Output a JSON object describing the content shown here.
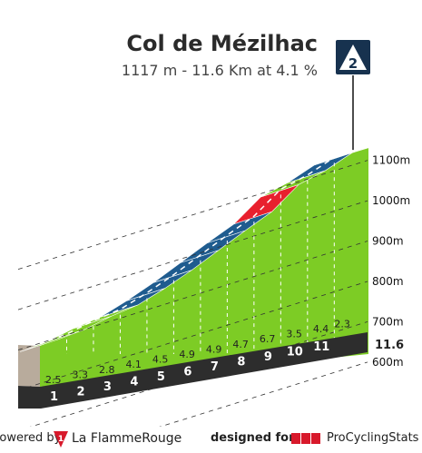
{
  "chart_data": {
    "type": "area",
    "title": "Col de Mézilhac",
    "subtitle": "1117 m - 11.6 Km at 4.1 %",
    "badge": "2",
    "x_labels": [
      "1",
      "2",
      "3",
      "4",
      "5",
      "6",
      "7",
      "8",
      "9",
      "10",
      "11"
    ],
    "end_label": "11.6",
    "km_gradients": [
      2.5,
      3.3,
      2.8,
      4.1,
      4.5,
      4.9,
      4.9,
      4.7,
      6.7,
      3.5,
      4.4,
      2.3
    ],
    "altitude_ticks": [
      "600m",
      "700m",
      "800m",
      "900m",
      "1000m",
      "1100m"
    ],
    "altitude_tick_values": [
      600,
      700,
      800,
      900,
      1000,
      1100
    ],
    "summit_altitude": 1117,
    "distance_km": 11.6,
    "average_gradient": 4.1,
    "gradient_colors": {
      "0-4": "#7dcc25",
      "4-6": "#1f5c8f",
      "6-8": "#e8202e",
      "base": "#2d2d2d",
      "wall": "#b8ab9c"
    }
  },
  "footer": {
    "powered_by": "Powered by",
    "brand": "La FlammeRouge",
    "designed_for": "designed for",
    "pcs_mark": "PCS",
    "pcs_name": "ProCyclingStats"
  },
  "colors": {
    "title": "#2b2b2b",
    "badge_bg": "#17324f",
    "profile_green": "#7dcc25",
    "profile_blue": "#1f5c8f",
    "profile_red": "#e8202e"
  }
}
